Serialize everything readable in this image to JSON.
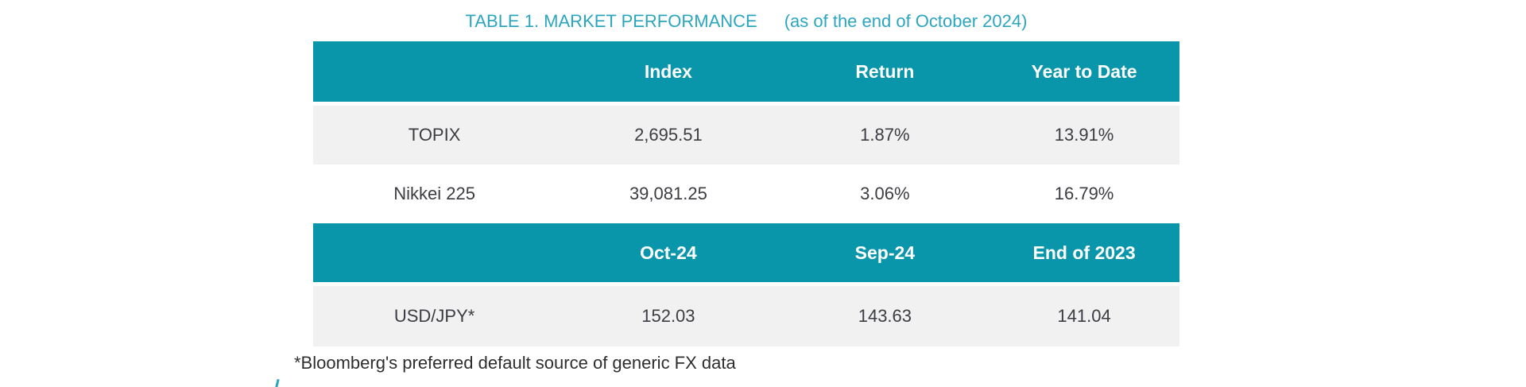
{
  "colors": {
    "header_bg": "#0995aa",
    "title_text": "#2ca6be",
    "row_alt_bg": "#f1f1f2",
    "header_text": "#ffffff",
    "body_text": "#3c3c42"
  },
  "title": {
    "main": "TABLE 1. MARKET PERFORMANCE",
    "date_note": "(as of the end of October 2024)"
  },
  "market_table": {
    "headers": [
      "",
      "Index",
      "Return",
      "Year to Date"
    ],
    "rows": [
      [
        "TOPIX",
        "2,695.51",
        "1.87%",
        "13.91%"
      ],
      [
        "Nikkei 225",
        "39,081.25",
        "3.06%",
        "16.79%"
      ]
    ]
  },
  "fx_table": {
    "headers": [
      "",
      "Oct-24",
      "Sep-24",
      "End of 2023"
    ],
    "rows": [
      [
        "USD/JPY*",
        "152.03",
        "143.63",
        "141.04"
      ]
    ]
  },
  "footnote": "*Bloomberg's preferred default source of generic FX data"
}
